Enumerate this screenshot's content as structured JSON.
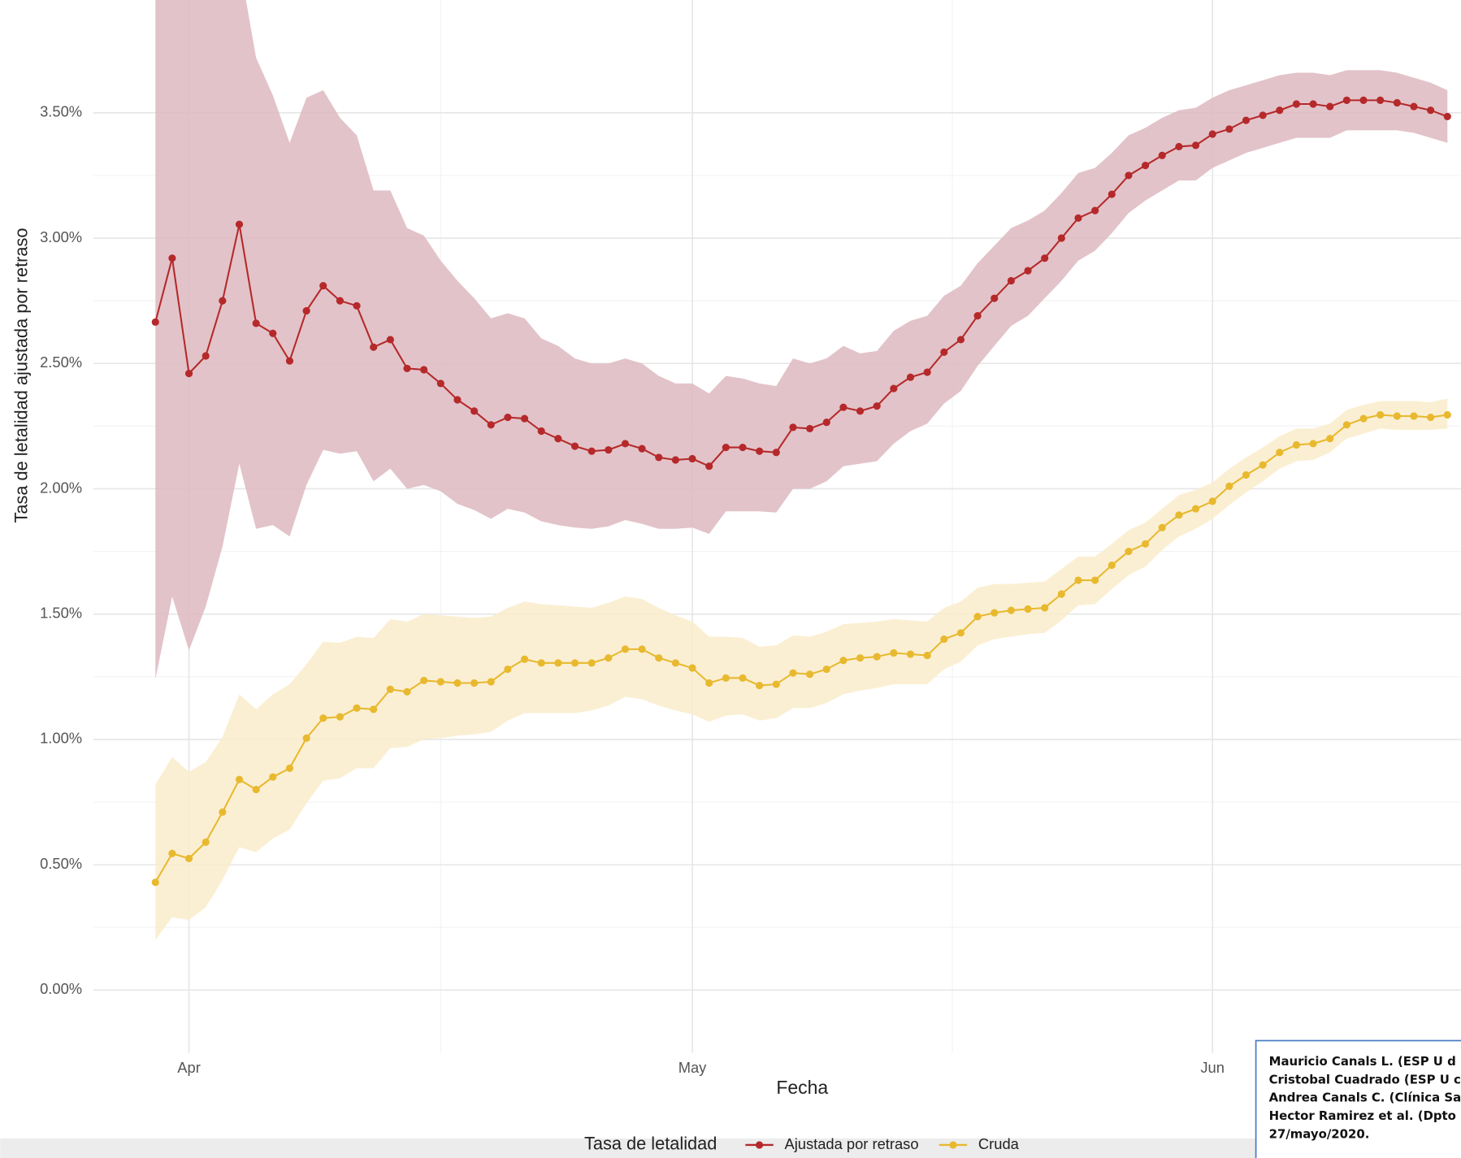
{
  "chart_data": {
    "type": "line",
    "y_label": "Tasa de letalidad ajustada por retraso",
    "x_label": "Fecha",
    "legend_title": "Tasa de letalidad",
    "legend": "bottom",
    "grid": true,
    "x": [
      -2,
      -1,
      0,
      1,
      2,
      3,
      4,
      5,
      6,
      7,
      8,
      9,
      10,
      11,
      12,
      13,
      14,
      15,
      16,
      17,
      18,
      19,
      20,
      21,
      22,
      23,
      24,
      25,
      26,
      27,
      28,
      29,
      30,
      31,
      32,
      33,
      34,
      35,
      36,
      37,
      38,
      39,
      40,
      41,
      42,
      43,
      44,
      45,
      46,
      47,
      48,
      49,
      50,
      51,
      52,
      53,
      54,
      55,
      56,
      57,
      58,
      59,
      60,
      61,
      62,
      63,
      64,
      65,
      66,
      67,
      68,
      69,
      70,
      71,
      72,
      73,
      74,
      75
    ],
    "xlim": [
      -5.7,
      75.8
    ],
    "xticks": [
      {
        "value": 0,
        "label": "Apr"
      },
      {
        "value": 30,
        "label": "May"
      },
      {
        "value": 61,
        "label": "Jun"
      }
    ],
    "ylim": [
      -0.25,
      3.95
    ],
    "yticks": [
      {
        "value": 0,
        "label": "0.00%"
      },
      {
        "value": 0.5,
        "label": "0.50%"
      },
      {
        "value": 1,
        "label": "1.00%"
      },
      {
        "value": 1.5,
        "label": "1.50%"
      },
      {
        "value": 2,
        "label": "2.00%"
      },
      {
        "value": 2.5,
        "label": "2.50%"
      },
      {
        "value": 3,
        "label": "3.00%"
      },
      {
        "value": 3.5,
        "label": "3.50%"
      }
    ],
    "series": [
      {
        "name": "Ajustada por retraso",
        "color": "#b5292a",
        "band_color": "#ddb8bf",
        "values": [
          2.665,
          2.92,
          2.46,
          2.53,
          2.75,
          3.055,
          2.66,
          2.62,
          2.51,
          2.71,
          2.81,
          2.75,
          2.73,
          2.565,
          2.595,
          2.48,
          2.475,
          2.42,
          2.355,
          2.31,
          2.255,
          2.285,
          2.28,
          2.23,
          2.2,
          2.17,
          2.15,
          2.155,
          2.18,
          2.16,
          2.125,
          2.115,
          2.12,
          2.09,
          2.165,
          2.165,
          2.15,
          2.145,
          2.245,
          2.24,
          2.265,
          2.325,
          2.31,
          2.33,
          2.4,
          2.445,
          2.465,
          2.545,
          2.595,
          2.69,
          2.76,
          2.83,
          2.87,
          2.92,
          3.0,
          3.08,
          3.11,
          3.175,
          3.25,
          3.29,
          3.33,
          3.365,
          3.37,
          3.415,
          3.435,
          3.47,
          3.49,
          3.51,
          3.535,
          3.535,
          3.525,
          3.55,
          3.55,
          3.55,
          3.54,
          3.525,
          3.51,
          3.485
        ],
        "upper": [
          5.0,
          5.0,
          5.0,
          5.0,
          4.5,
          4.1,
          3.72,
          3.57,
          3.38,
          3.56,
          3.59,
          3.48,
          3.41,
          3.19,
          3.19,
          3.04,
          3.01,
          2.91,
          2.83,
          2.76,
          2.68,
          2.7,
          2.68,
          2.6,
          2.57,
          2.52,
          2.5,
          2.5,
          2.52,
          2.5,
          2.45,
          2.42,
          2.42,
          2.38,
          2.45,
          2.44,
          2.42,
          2.41,
          2.52,
          2.5,
          2.52,
          2.57,
          2.54,
          2.55,
          2.63,
          2.67,
          2.69,
          2.77,
          2.81,
          2.9,
          2.97,
          3.04,
          3.07,
          3.11,
          3.18,
          3.26,
          3.28,
          3.34,
          3.41,
          3.44,
          3.48,
          3.51,
          3.52,
          3.56,
          3.59,
          3.61,
          3.63,
          3.65,
          3.66,
          3.66,
          3.65,
          3.67,
          3.67,
          3.67,
          3.66,
          3.64,
          3.62,
          3.59
        ],
        "lower": [
          1.24,
          1.57,
          1.355,
          1.53,
          1.77,
          2.1,
          1.84,
          1.855,
          1.81,
          2.015,
          2.155,
          2.14,
          2.15,
          2.03,
          2.08,
          2.0,
          2.015,
          1.99,
          1.94,
          1.915,
          1.88,
          1.92,
          1.905,
          1.87,
          1.855,
          1.845,
          1.84,
          1.85,
          1.875,
          1.86,
          1.84,
          1.84,
          1.845,
          1.82,
          1.91,
          1.91,
          1.91,
          1.905,
          2.0,
          2.0,
          2.03,
          2.09,
          2.1,
          2.11,
          2.18,
          2.23,
          2.26,
          2.34,
          2.39,
          2.49,
          2.57,
          2.65,
          2.69,
          2.76,
          2.83,
          2.91,
          2.95,
          3.02,
          3.1,
          3.15,
          3.19,
          3.23,
          3.23,
          3.28,
          3.31,
          3.34,
          3.36,
          3.38,
          3.4,
          3.4,
          3.4,
          3.43,
          3.43,
          3.43,
          3.43,
          3.42,
          3.4,
          3.38
        ]
      },
      {
        "name": "Cruda",
        "color": "#e8b92f",
        "band_color": "#faeccb",
        "values": [
          0.43,
          0.545,
          0.525,
          0.59,
          0.71,
          0.84,
          0.8,
          0.85,
          0.885,
          1.005,
          1.085,
          1.09,
          1.125,
          1.12,
          1.2,
          1.19,
          1.235,
          1.23,
          1.225,
          1.225,
          1.23,
          1.28,
          1.32,
          1.305,
          1.305,
          1.305,
          1.305,
          1.325,
          1.36,
          1.36,
          1.325,
          1.305,
          1.285,
          1.225,
          1.245,
          1.245,
          1.215,
          1.22,
          1.265,
          1.26,
          1.28,
          1.315,
          1.325,
          1.33,
          1.345,
          1.34,
          1.335,
          1.4,
          1.425,
          1.49,
          1.505,
          1.515,
          1.52,
          1.525,
          1.58,
          1.635,
          1.635,
          1.695,
          1.75,
          1.78,
          1.845,
          1.895,
          1.92,
          1.95,
          2.01,
          2.055,
          2.095,
          2.145,
          2.175,
          2.18,
          2.2,
          2.255,
          2.28,
          2.295,
          2.29,
          2.29,
          2.285,
          2.295
        ],
        "upper": [
          0.82,
          0.93,
          0.87,
          0.91,
          1.01,
          1.18,
          1.12,
          1.18,
          1.22,
          1.3,
          1.39,
          1.385,
          1.41,
          1.405,
          1.48,
          1.47,
          1.5,
          1.495,
          1.49,
          1.485,
          1.49,
          1.525,
          1.55,
          1.54,
          1.535,
          1.53,
          1.525,
          1.545,
          1.57,
          1.56,
          1.525,
          1.495,
          1.47,
          1.41,
          1.41,
          1.405,
          1.37,
          1.375,
          1.415,
          1.41,
          1.43,
          1.46,
          1.465,
          1.47,
          1.48,
          1.475,
          1.47,
          1.525,
          1.55,
          1.605,
          1.62,
          1.62,
          1.625,
          1.63,
          1.68,
          1.73,
          1.73,
          1.78,
          1.835,
          1.865,
          1.92,
          1.975,
          1.995,
          2.025,
          2.08,
          2.125,
          2.165,
          2.21,
          2.24,
          2.24,
          2.26,
          2.315,
          2.335,
          2.35,
          2.35,
          2.35,
          2.345,
          2.36
        ],
        "lower": [
          0.2,
          0.29,
          0.28,
          0.33,
          0.44,
          0.57,
          0.55,
          0.605,
          0.64,
          0.745,
          0.835,
          0.845,
          0.885,
          0.885,
          0.965,
          0.97,
          1.0,
          1.005,
          1.015,
          1.02,
          1.03,
          1.075,
          1.105,
          1.105,
          1.105,
          1.105,
          1.115,
          1.135,
          1.17,
          1.16,
          1.135,
          1.115,
          1.1,
          1.07,
          1.095,
          1.1,
          1.075,
          1.085,
          1.125,
          1.125,
          1.145,
          1.18,
          1.195,
          1.205,
          1.22,
          1.22,
          1.22,
          1.28,
          1.31,
          1.375,
          1.4,
          1.41,
          1.42,
          1.425,
          1.475,
          1.535,
          1.54,
          1.6,
          1.655,
          1.69,
          1.755,
          1.81,
          1.84,
          1.88,
          1.935,
          1.985,
          2.03,
          2.08,
          2.11,
          2.115,
          2.145,
          2.2,
          2.22,
          2.24,
          2.235,
          2.235,
          2.235,
          2.24
        ]
      }
    ],
    "note": [
      "Mauricio Canals L. (ESP U d",
      "Cristobal Cuadrado (ESP U c",
      "Andrea Canals C. (Clínica Sa",
      "Hector Ramirez et al. (Dpto",
      "27/mayo/2020."
    ]
  }
}
